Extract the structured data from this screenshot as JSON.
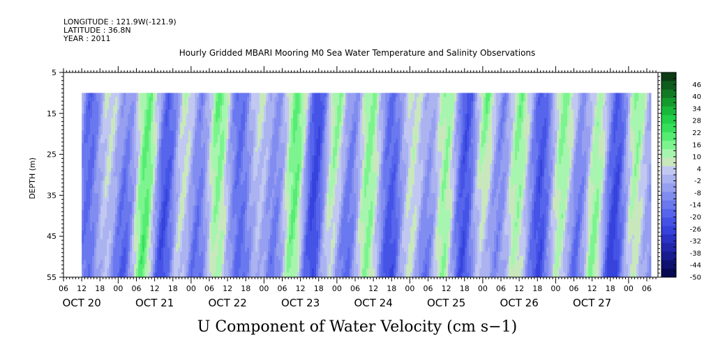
{
  "header": {
    "longitude": "LONGITUDE : 121.9W(-121.9)",
    "latitude": "LATITUDE : 36.8N",
    "year": "YEAR : 2011"
  },
  "chart_data": {
    "type": "heatmap",
    "title": "Hourly Gridded MBARI Mooring M0 Sea Water Temperature and Salinity Observations",
    "xlabel": "U Component of Water Velocity (cm s−1)",
    "ylabel": "DEPTH (m)",
    "y_ticks": [
      "5",
      "15",
      "25",
      "35",
      "45",
      "55"
    ],
    "ylim": [
      5,
      55
    ],
    "y_inverted": true,
    "x_hour_ticks": [
      "06",
      "12",
      "18",
      "00",
      "06",
      "12",
      "18",
      "00",
      "06",
      "12",
      "18",
      "00",
      "06",
      "12",
      "18",
      "00",
      "06",
      "12",
      "18",
      "00",
      "06",
      "12",
      "18",
      "00",
      "06",
      "12",
      "18",
      "00",
      "06",
      "12",
      "18",
      "00",
      "06"
    ],
    "x_date_labels": [
      "OCT 20",
      "OCT 21",
      "OCT 22",
      "OCT 23",
      "OCT 24",
      "OCT 25",
      "OCT 26",
      "OCT 27"
    ],
    "data_depth_range_m": [
      10,
      55
    ],
    "colorbar": {
      "labels": [
        "46",
        "40",
        "34",
        "28",
        "22",
        "16",
        "10",
        "4",
        "-2",
        "-8",
        "-14",
        "-20",
        "-26",
        "-32",
        "-38",
        "-44",
        "-50"
      ],
      "range": [
        -50,
        52
      ],
      "step": 3,
      "colors_high_to_low": [
        "#0c3b14",
        "#0f5c1c",
        "#127a24",
        "#159a2d",
        "#1ab83a",
        "#22cf48",
        "#35df5a",
        "#55ec72",
        "#7cf48e",
        "#a6f5ae",
        "#c8e8bc",
        "#c0c8f2",
        "#aab2f0",
        "#969ff0",
        "#808cf0",
        "#6a78ef",
        "#5665eb",
        "#4453e6",
        "#3642dc",
        "#2b32c6",
        "#2126ad",
        "#171b8f",
        "#0e1170",
        "#070a52"
      ]
    }
  }
}
